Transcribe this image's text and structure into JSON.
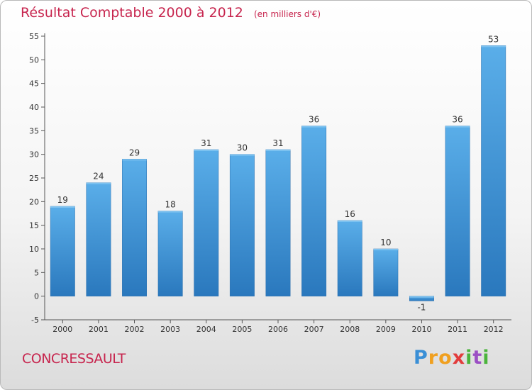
{
  "header": {
    "title": "Résultat Comptable 2000 à 2012",
    "unit": "(en milliers d'€)"
  },
  "footer": {
    "town": "CONCRESSAULT",
    "brand_letters": [
      "P",
      "r",
      "o",
      "x",
      "i",
      "t",
      "i"
    ],
    "brand_colors": [
      "#3a8fd6",
      "#f0a020",
      "#f0a020",
      "#e23c3c",
      "#4bb43c",
      "#9b4fc4",
      "#4bb43c"
    ]
  },
  "chart_data": {
    "type": "bar",
    "title": "Résultat Comptable 2000 à 2012",
    "subtitle": "(en milliers d'€)",
    "xlabel": "",
    "ylabel": "",
    "categories": [
      "2000",
      "2001",
      "2002",
      "2003",
      "2004",
      "2005",
      "2006",
      "2007",
      "2008",
      "2009",
      "2010",
      "2011",
      "2012"
    ],
    "values": [
      19,
      24,
      29,
      18,
      31,
      30,
      31,
      36,
      16,
      10,
      -1,
      36,
      53
    ],
    "value_labels": [
      "19",
      "24",
      "29",
      "18",
      "31",
      "30",
      "31",
      "36",
      "16",
      "10",
      "-1",
      "36",
      "53"
    ],
    "ylim": [
      -5,
      55
    ],
    "yticks": [
      -5,
      0,
      5,
      10,
      15,
      20,
      25,
      30,
      35,
      40,
      45,
      50,
      55
    ],
    "ytick_labels": [
      "-5",
      "0",
      "5",
      "10",
      "15",
      "20",
      "25",
      "30",
      "35",
      "40",
      "45",
      "50",
      "55"
    ],
    "grid": false,
    "legend": "none",
    "bar_color": "#3d94dc",
    "bar_color_light": "#5aaee9",
    "bar_color_dark": "#2a78bd"
  }
}
